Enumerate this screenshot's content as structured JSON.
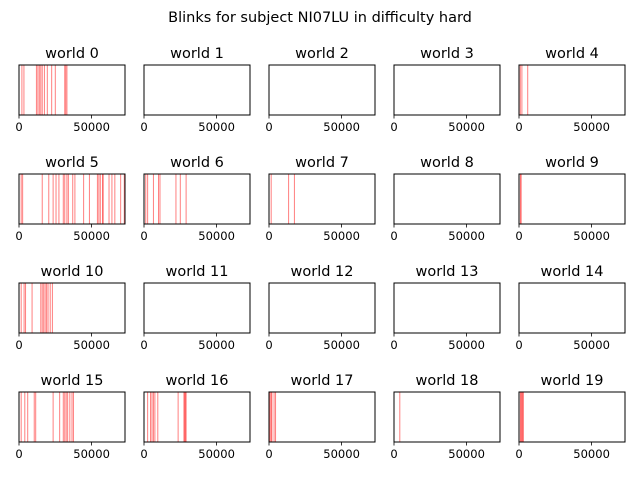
{
  "chart_data": {
    "type": "event-raster",
    "title": "Blinks for subject NI07LU in difficulty hard",
    "xlim": [
      0,
      73000
    ],
    "xticks": [
      0,
      50000
    ],
    "xtick_labels": [
      "0",
      "50000"
    ],
    "line_color": "#ff0000",
    "line_alpha": 0.5,
    "grid": false,
    "yticks": false,
    "panels": [
      {
        "title": "world 0",
        "events": [
          2000,
          3400,
          12000,
          13000,
          14000,
          15000,
          16000,
          17500,
          19500,
          22500,
          25000,
          31500,
          32200,
          33000
        ]
      },
      {
        "title": "world 1",
        "events": []
      },
      {
        "title": "world 2",
        "events": []
      },
      {
        "title": "world 3",
        "events": []
      },
      {
        "title": "world 4",
        "events": [
          900,
          2000,
          6000
        ]
      },
      {
        "title": "world 5",
        "events": [
          1500,
          2500,
          16000,
          20500,
          23500,
          25500,
          27500,
          30500,
          31500,
          33000,
          34000,
          37000,
          38500,
          44500,
          48500,
          54000,
          55000,
          56000,
          57500,
          58000,
          62000,
          64000,
          66000,
          70000,
          72500
        ]
      },
      {
        "title": "world 6",
        "events": [
          1200,
          2500,
          6500,
          10000,
          11000,
          22000,
          25000,
          29000
        ]
      },
      {
        "title": "world 7",
        "events": [
          1500,
          13500,
          17500
        ]
      },
      {
        "title": "world 8",
        "events": []
      },
      {
        "title": "world 9",
        "events": [
          1000,
          1500
        ]
      },
      {
        "title": "world 10",
        "events": [
          1500,
          3500,
          4500,
          9000,
          15000,
          16000,
          17000,
          18000,
          19000,
          20000,
          21500,
          23000
        ]
      },
      {
        "title": "world 11",
        "events": []
      },
      {
        "title": "world 12",
        "events": []
      },
      {
        "title": "world 13",
        "events": []
      },
      {
        "title": "world 14",
        "events": []
      },
      {
        "title": "world 15",
        "events": [
          1500,
          4000,
          6000,
          10500,
          11500,
          23500,
          28000,
          30500,
          31500,
          32500,
          33500,
          35000,
          36500,
          37500
        ]
      },
      {
        "title": "world 16",
        "events": [
          2500,
          4500,
          5500,
          6500,
          7500,
          9500,
          23500,
          27500,
          28000,
          28500,
          29000
        ]
      },
      {
        "title": "world 17",
        "events": [
          700,
          1500,
          2000,
          3500,
          4500
        ]
      },
      {
        "title": "world 18",
        "events": [
          4000
        ]
      },
      {
        "title": "world 19",
        "events": [
          1000,
          1500,
          2000,
          2500,
          3000
        ]
      }
    ]
  }
}
